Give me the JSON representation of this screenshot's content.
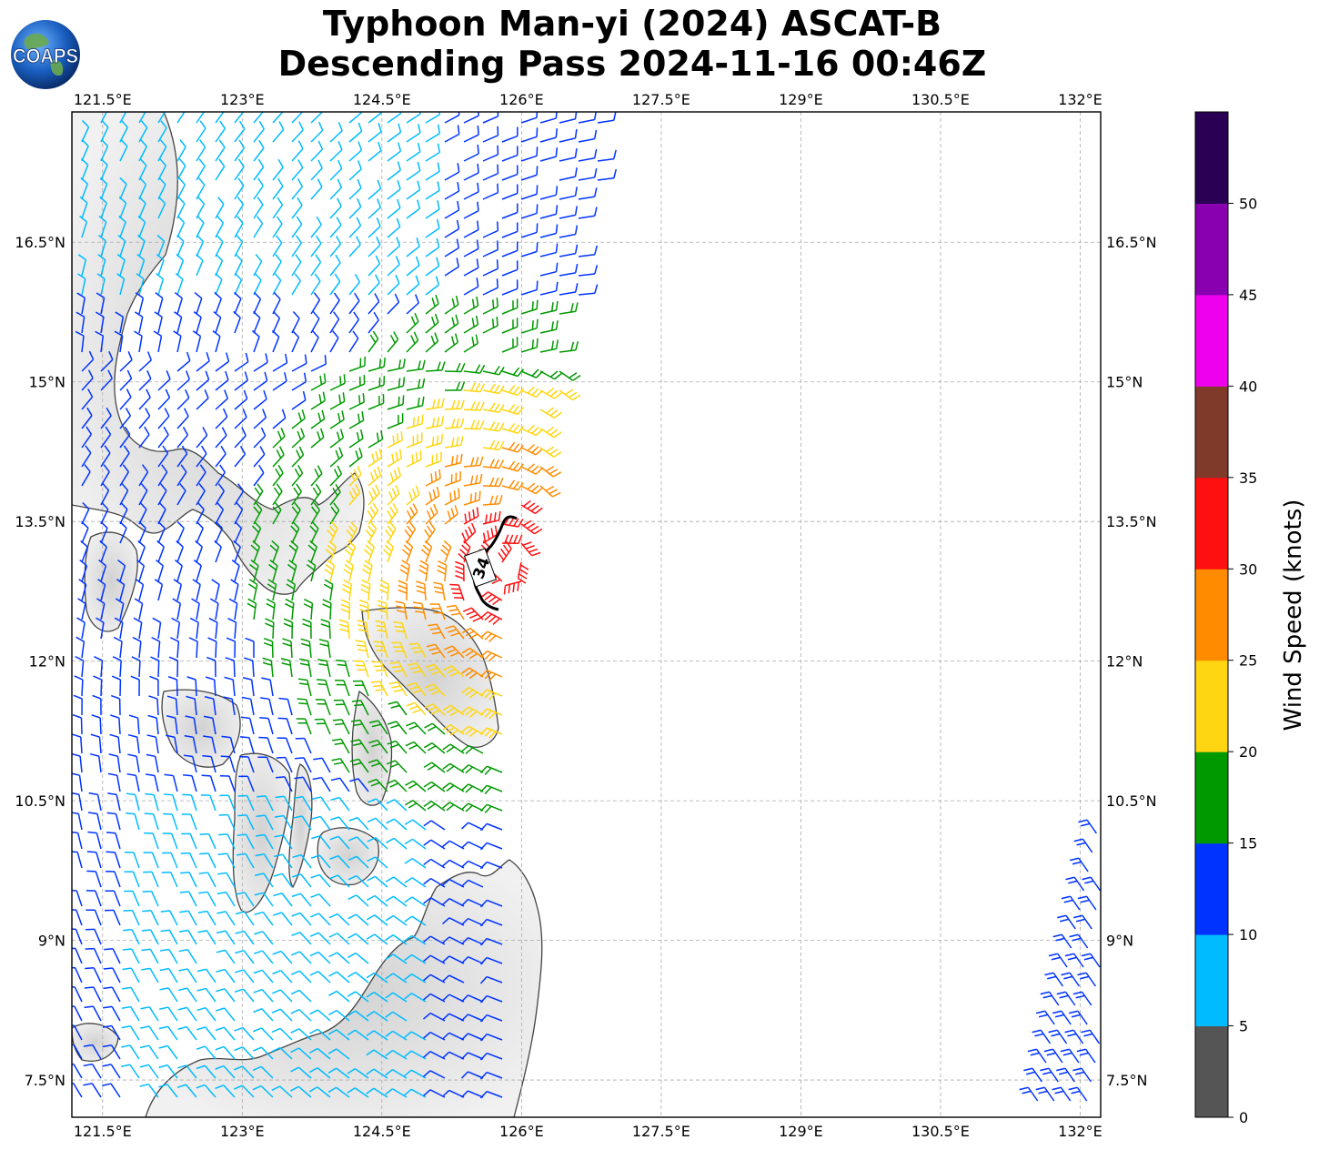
{
  "title": {
    "line1": "Typhoon Man-yi (2024) ASCAT-B",
    "line2": "Descending Pass 2024-11-16 00:46Z"
  },
  "logo": {
    "text": "COAPS",
    "icon": "globe-icon"
  },
  "map": {
    "lon_range": [
      121.17,
      132.22
    ],
    "lat_range": [
      7.1,
      17.9
    ],
    "lon_ticks": [
      "121.5°E",
      "123°E",
      "124.5°E",
      "126°E",
      "127.5°E",
      "129°E",
      "130.5°E",
      "132°E"
    ],
    "lat_ticks": [
      "16.5°N",
      "15°N",
      "13.5°N",
      "12°N",
      "10.5°N",
      "9°N",
      "7.5°N"
    ],
    "gridlines": true,
    "contour": {
      "label": "34",
      "color": "#000000"
    }
  },
  "colorbar": {
    "label": "Wind Speed (knots)",
    "ticks": [
      "0",
      "5",
      "10",
      "15",
      "20",
      "25",
      "30",
      "35",
      "40",
      "45",
      "50"
    ],
    "colors": [
      "#555555",
      "#00bbff",
      "#0033ff",
      "#009900",
      "#ffd611",
      "#ff8c00",
      "#ff1010",
      "#7f3a2a",
      "#ee00ee",
      "#8800b0",
      "#2a0055"
    ]
  }
}
